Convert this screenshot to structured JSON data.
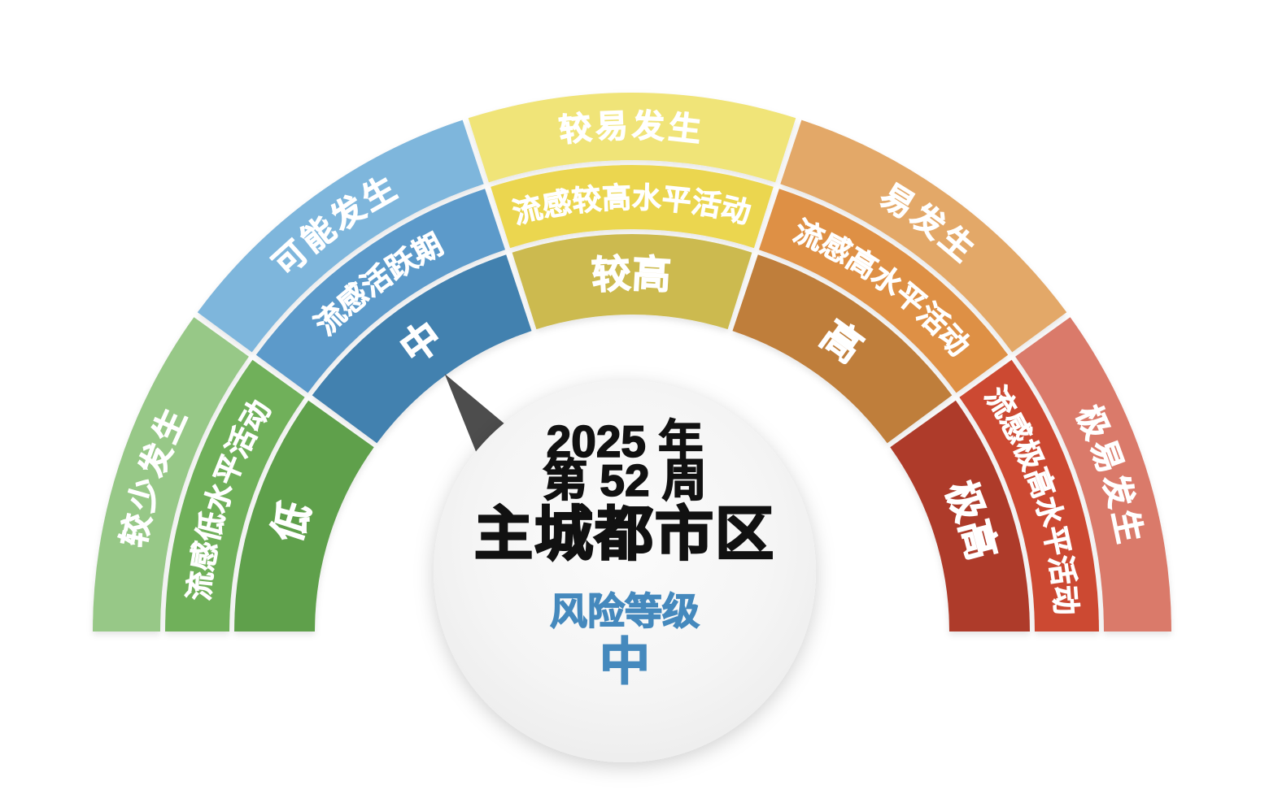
{
  "gauge": {
    "center": {
      "year": "2025 年",
      "week": "第 52 周",
      "region": "主城都市区",
      "risk_label": "风险等级",
      "risk_value": "中"
    },
    "accent_color": "#4589BD",
    "text_color": "#111111",
    "pointer_color": "#4D4D4D",
    "selected_index": 1,
    "segments": [
      {
        "id": "low",
        "level": "低",
        "activity": "流感低水平活动",
        "likelihood": "较少发生",
        "colors": {
          "inner": "#5FA04B",
          "middle": "#6FB05A",
          "outer": "#97C887"
        }
      },
      {
        "id": "medium",
        "level": "中",
        "activity": "流感活跃期",
        "likelihood": "可能发生",
        "colors": {
          "inner": "#4381AF",
          "middle": "#5C9ACA",
          "outer": "#7EB6DC"
        }
      },
      {
        "id": "medium-high",
        "level": "较高",
        "activity": "流感较高水平活动",
        "likelihood": "较易发生",
        "colors": {
          "inner": "#CCBA4F",
          "middle": "#EBD650",
          "outer": "#F0E478"
        }
      },
      {
        "id": "high",
        "level": "高",
        "activity": "流感高水平活动",
        "likelihood": "易发生",
        "colors": {
          "inner": "#BF7E3B",
          "middle": "#DE9045",
          "outer": "#E3A868"
        }
      },
      {
        "id": "extreme",
        "level": "极高",
        "activity": "流感极高水平活动",
        "likelihood": "极易发生",
        "colors": {
          "inner": "#AE3B29",
          "middle": "#CC4A32",
          "outer": "#DA7A6B"
        }
      }
    ]
  },
  "chart_data": {
    "type": "gauge",
    "shape": "semicircle",
    "period": "2025 年 第 52 周",
    "region": "主城都市区",
    "value_label": "风险等级",
    "current_value": "中",
    "selected_index": 1,
    "scale": [
      "低",
      "中",
      "较高",
      "高",
      "极高"
    ],
    "segments": [
      {
        "level": "低",
        "activity": "流感低水平活动",
        "likelihood": "较少发生",
        "color": "#5FA04B"
      },
      {
        "level": "中",
        "activity": "流感活跃期",
        "likelihood": "可能发生",
        "color": "#4381AF"
      },
      {
        "level": "较高",
        "activity": "流感较高水平活动",
        "likelihood": "较易发生",
        "color": "#CCBA4F"
      },
      {
        "level": "高",
        "activity": "流感高水平活动",
        "likelihood": "易发生",
        "color": "#BF7E3B"
      },
      {
        "level": "极高",
        "activity": "流感极高水平活动",
        "likelihood": "极易发生",
        "color": "#AE3B29"
      }
    ],
    "legend_position": "none",
    "grid": false
  }
}
